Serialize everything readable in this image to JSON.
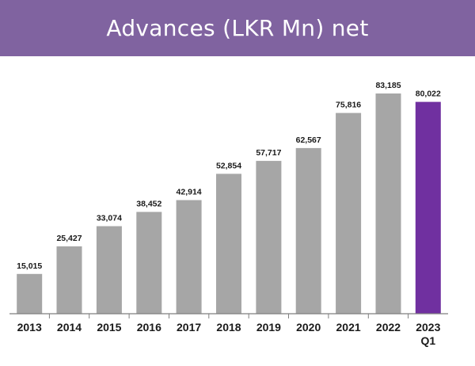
{
  "title": "Advances (LKR Mn) net",
  "colors": {
    "banner": "#8063a0",
    "title_text": "#ffffff",
    "bar_default": "#a6a6a6",
    "bar_highlight": "#7030a0",
    "axis": "#7f7f7f",
    "text": "#1a1a1a"
  },
  "chart_data": {
    "type": "bar",
    "categories": [
      [
        "2013"
      ],
      [
        "2014"
      ],
      [
        "2015"
      ],
      [
        "2016"
      ],
      [
        "2017"
      ],
      [
        "2018"
      ],
      [
        "2019"
      ],
      [
        "2020"
      ],
      [
        "2021"
      ],
      [
        "2022"
      ],
      [
        "2023",
        "Q1"
      ]
    ],
    "values": [
      15015,
      25427,
      33074,
      38452,
      42914,
      52854,
      57717,
      62567,
      75816,
      83185,
      80022
    ],
    "data_labels": [
      "15,015",
      "25,427",
      "33,074",
      "38,452",
      "42,914",
      "52,854",
      "57,717",
      "62,567",
      "75,816",
      "83,185",
      "80,022"
    ],
    "highlight_index": 10,
    "ylim": [
      0,
      83185
    ],
    "grid": false,
    "legend": "none",
    "title": "Advances (LKR Mn) net",
    "xlabel": "",
    "ylabel": ""
  }
}
